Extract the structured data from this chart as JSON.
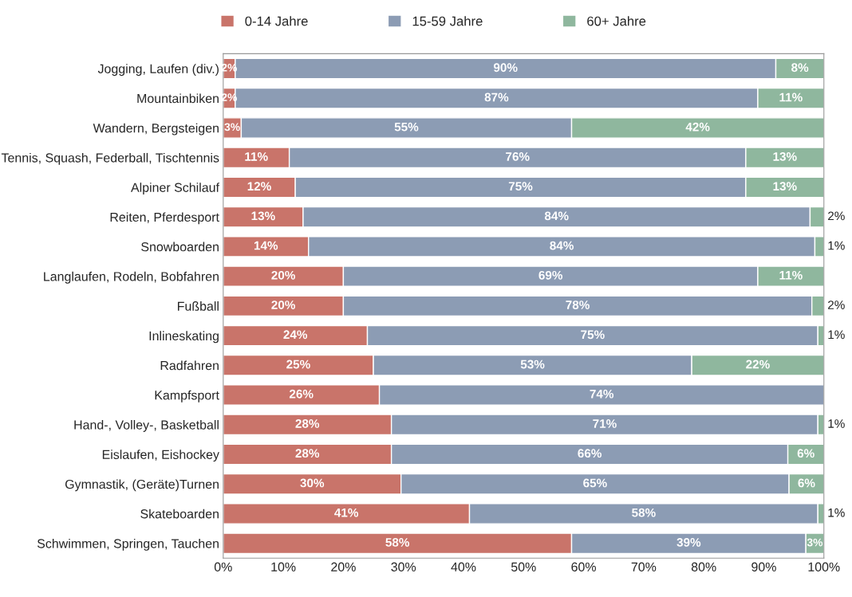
{
  "chart_data": {
    "type": "bar",
    "orientation": "horizontal",
    "stacked": true,
    "legend": "top",
    "grid": false,
    "categories": [
      "Jogging, Laufen (div.)",
      "Mountainbiken",
      "Wandern, Bergsteigen",
      "Tennis, Squash, Federball, Tischtennis",
      "Alpiner Schilauf",
      "Reiten, Pferdesport",
      "Snowboarden",
      "Langlaufen, Rodeln, Bobfahren",
      "Fußball",
      "Inlineskating",
      "Radfahren",
      "Kampfsport",
      "Hand-, Volley-, Basketball",
      "Eislaufen, Eishockey",
      "Gymnastik, (Geräte)Turnen",
      "Skateboarden",
      "Schwimmen, Springen, Tauchen"
    ],
    "series": [
      {
        "name": "0-14 Jahre",
        "color": "#c9746a",
        "values": [
          2,
          2,
          3,
          11,
          12,
          13.3,
          14.2,
          20,
          20,
          24,
          25,
          26,
          28,
          28,
          29.6,
          41,
          58
        ],
        "value_labels": [
          "2%",
          "2%",
          "3%",
          "11%",
          "12%",
          "13%",
          "14%",
          "20%",
          "20%",
          "24%",
          "25%",
          "26%",
          "28%",
          "28%",
          "30%",
          "41%",
          "58%"
        ]
      },
      {
        "name": "15-59 Jahre",
        "color": "#8c9cb4",
        "values": [
          90,
          87,
          55,
          76,
          75,
          84.4,
          84.3,
          69,
          78,
          75,
          53,
          74,
          71,
          66,
          64.6,
          58,
          39
        ],
        "value_labels": [
          "90%",
          "87%",
          "55%",
          "76%",
          "75%",
          "84%",
          "84%",
          "69%",
          "78%",
          "75%",
          "53%",
          "74%",
          "71%",
          "66%",
          "65%",
          "58%",
          "39%"
        ]
      },
      {
        "name": "60+ Jahre",
        "color": "#8fb79e",
        "values": [
          8,
          11,
          42,
          13,
          13,
          2.3,
          1.5,
          11,
          2,
          1,
          22,
          null,
          1,
          6,
          5.8,
          1,
          3
        ],
        "value_labels": [
          "8%",
          "11%",
          "42%",
          "13%",
          "13%",
          "2%",
          "1%",
          "11%",
          "2%",
          "1%",
          "22%",
          null,
          "1%",
          "6%",
          "6%",
          "1%",
          "3%"
        ]
      }
    ],
    "xlim": [
      0,
      100
    ],
    "xticks": [
      {
        "value": 0,
        "label": "0%"
      },
      {
        "value": 10,
        "label": "10%"
      },
      {
        "value": 20,
        "label": "20%"
      },
      {
        "value": 30,
        "label": "30%"
      },
      {
        "value": 40,
        "label": "40%"
      },
      {
        "value": 50,
        "label": "50%"
      },
      {
        "value": 60,
        "label": "60%"
      },
      {
        "value": 70,
        "label": "70%"
      },
      {
        "value": 80,
        "label": "80%"
      },
      {
        "value": 90,
        "label": "90%"
      },
      {
        "value": 100,
        "label": "100%"
      }
    ]
  }
}
